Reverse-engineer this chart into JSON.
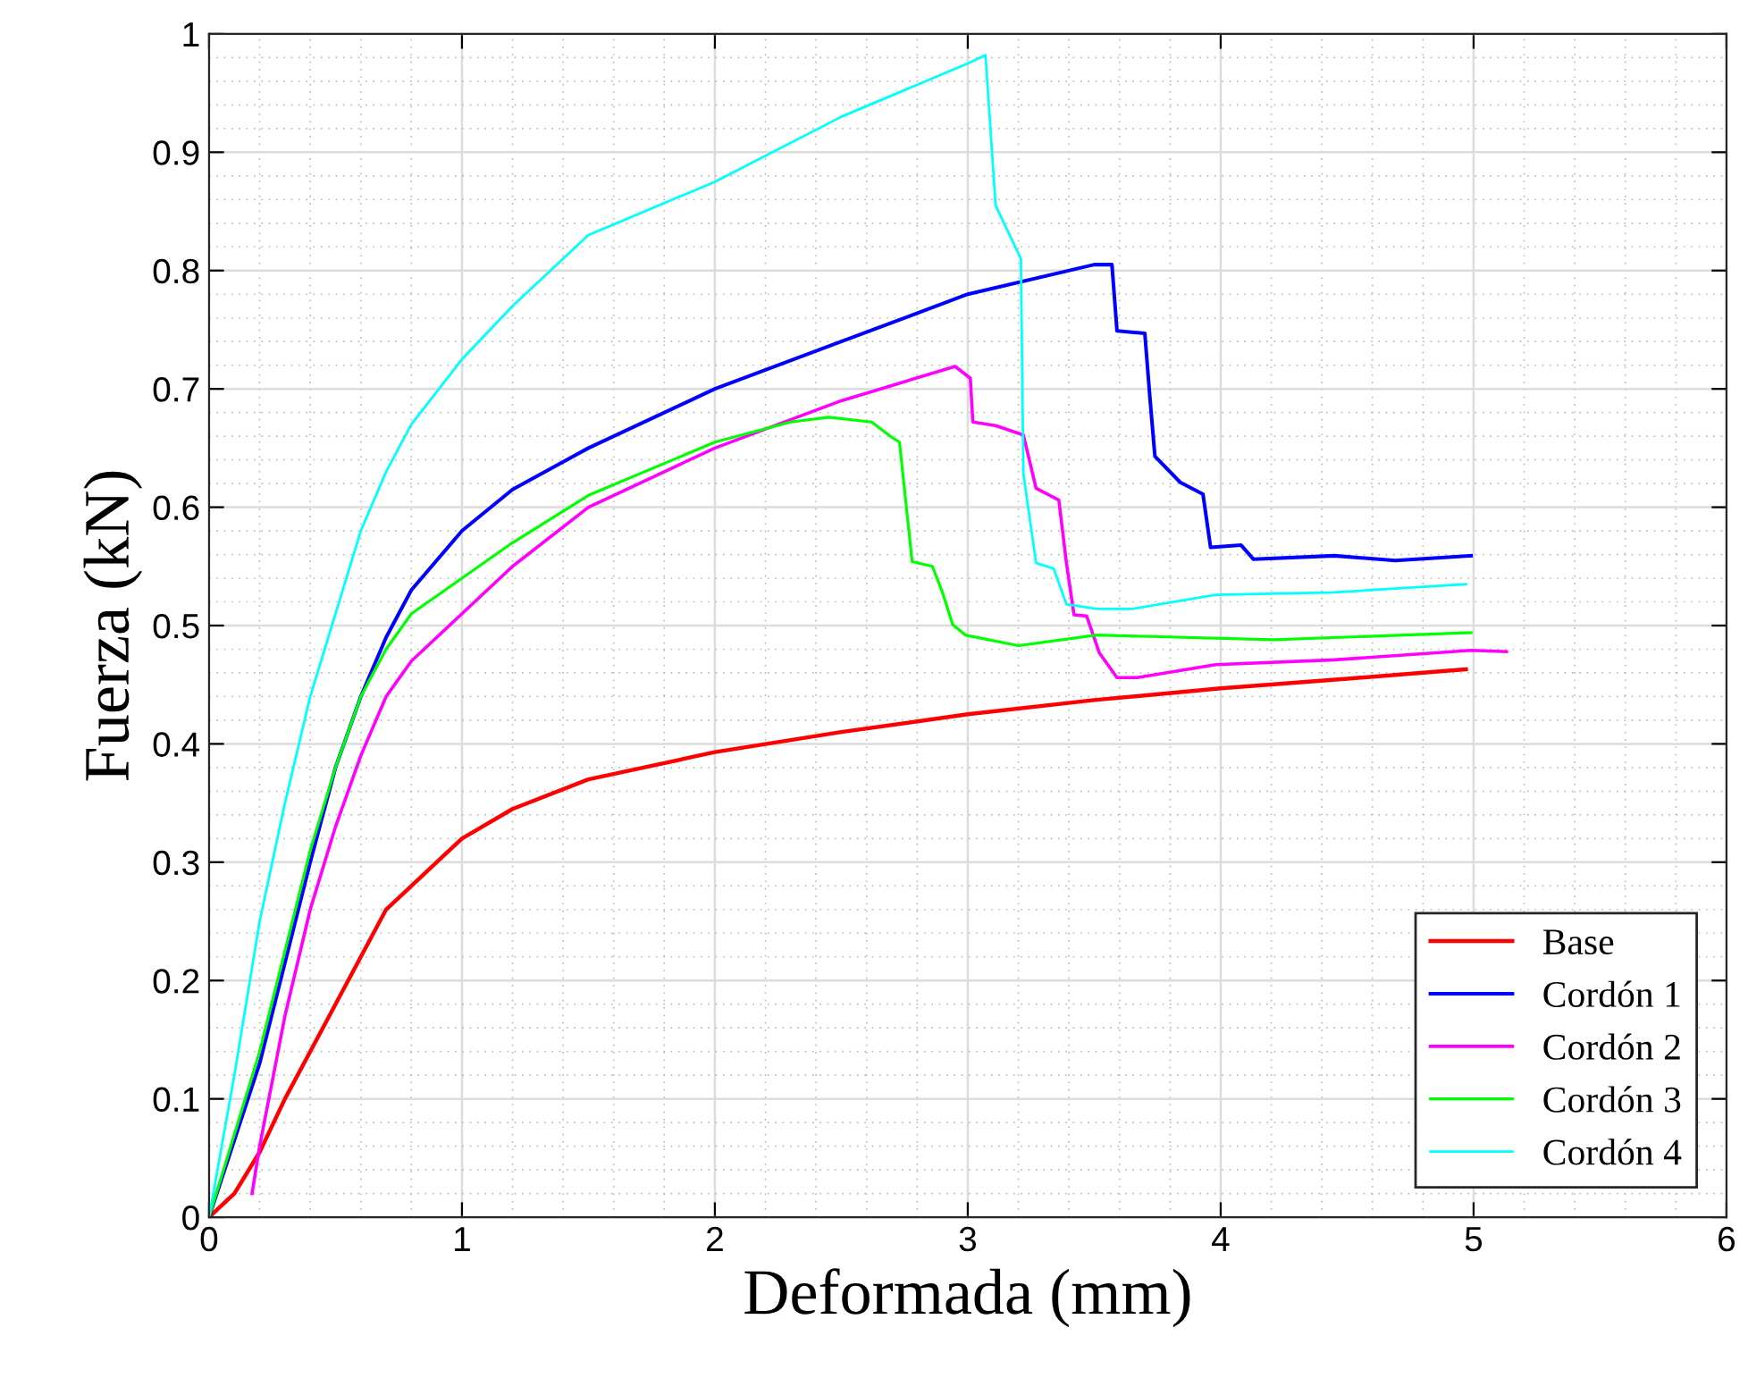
{
  "chart_data": {
    "type": "line",
    "xlabel": "Deformada (mm)",
    "ylabel": "Fuerza (kN)",
    "xlim": [
      0,
      6
    ],
    "ylim": [
      0,
      1
    ],
    "xticks": [
      0,
      1,
      2,
      3,
      4,
      5,
      6
    ],
    "yticks": [
      0,
      0.1,
      0.2,
      0.3,
      0.4,
      0.5,
      0.6,
      0.7,
      0.8,
      0.9,
      1
    ],
    "grid": true,
    "legend": "bottom right",
    "line_style": "solid",
    "marker": "none",
    "series": [
      {
        "name": "Base",
        "color": "#ff0000",
        "x": [
          0,
          0.1,
          0.2,
          0.3,
          0.4,
          0.5,
          0.6,
          0.7,
          0.8,
          1.0,
          1.2,
          1.5,
          2.0,
          2.5,
          3.0,
          3.5,
          4.0,
          4.5,
          4.97
        ],
        "values": [
          0,
          0.02,
          0.055,
          0.1,
          0.14,
          0.18,
          0.22,
          0.26,
          0.28,
          0.32,
          0.345,
          0.37,
          0.393,
          0.41,
          0.425,
          0.437,
          0.447,
          0.455,
          0.463
        ]
      },
      {
        "name": "Cordón 1",
        "color": "#0000ff",
        "x": [
          0,
          0.2,
          0.4,
          0.5,
          0.6,
          0.7,
          0.8,
          1.0,
          1.2,
          1.5,
          2.0,
          2.5,
          3.0,
          3.5,
          3.57,
          3.59,
          3.7,
          3.72,
          3.74,
          3.84,
          3.93,
          3.96,
          4.08,
          4.13,
          4.45,
          4.69,
          4.99
        ],
        "values": [
          0,
          0.13,
          0.3,
          0.38,
          0.44,
          0.49,
          0.53,
          0.58,
          0.615,
          0.65,
          0.7,
          0.74,
          0.78,
          0.805,
          0.805,
          0.749,
          0.747,
          0.693,
          0.643,
          0.621,
          0.611,
          0.566,
          0.568,
          0.556,
          0.559,
          0.555,
          0.559
        ]
      },
      {
        "name": "Cordón 2",
        "color": "#ff00ff",
        "x": [
          0.17,
          0.2,
          0.3,
          0.4,
          0.5,
          0.6,
          0.7,
          0.8,
          1.0,
          1.2,
          1.5,
          2.0,
          2.5,
          2.95,
          3.01,
          3.02,
          3.11,
          3.22,
          3.27,
          3.36,
          3.39,
          3.42,
          3.47,
          3.52,
          3.59,
          3.67,
          3.98,
          4.45,
          4.99,
          5.13
        ],
        "values": [
          0.02,
          0.06,
          0.17,
          0.26,
          0.33,
          0.39,
          0.44,
          0.47,
          0.51,
          0.55,
          0.6,
          0.65,
          0.69,
          0.719,
          0.709,
          0.672,
          0.669,
          0.661,
          0.616,
          0.606,
          0.553,
          0.509,
          0.508,
          0.477,
          0.456,
          0.456,
          0.467,
          0.471,
          0.479,
          0.478
        ]
      },
      {
        "name": "Cordón 3",
        "color": "#00ff00",
        "x": [
          0,
          0.2,
          0.4,
          0.5,
          0.6,
          0.7,
          0.8,
          1.0,
          1.2,
          1.5,
          2.0,
          2.3,
          2.45,
          2.62,
          2.7,
          2.73,
          2.78,
          2.86,
          2.9,
          2.94,
          2.99,
          3.2,
          3.51,
          4.21,
          4.99
        ],
        "values": [
          0,
          0.14,
          0.31,
          0.38,
          0.44,
          0.48,
          0.51,
          0.54,
          0.57,
          0.61,
          0.655,
          0.672,
          0.676,
          0.672,
          0.659,
          0.655,
          0.554,
          0.55,
          0.528,
          0.501,
          0.492,
          0.483,
          0.492,
          0.488,
          0.494
        ]
      },
      {
        "name": "Cordón 4",
        "color": "#00ffff",
        "x": [
          0,
          0.1,
          0.2,
          0.3,
          0.4,
          0.5,
          0.6,
          0.7,
          0.8,
          1.0,
          1.2,
          1.5,
          2.0,
          2.5,
          3.0,
          3.07,
          3.11,
          3.21,
          3.22,
          3.27,
          3.34,
          3.39,
          3.51,
          3.65,
          3.98,
          4.45,
          4.97
        ],
        "values": [
          0,
          0.12,
          0.25,
          0.35,
          0.44,
          0.51,
          0.58,
          0.63,
          0.67,
          0.725,
          0.77,
          0.83,
          0.875,
          0.93,
          0.975,
          0.982,
          0.855,
          0.81,
          0.628,
          0.553,
          0.548,
          0.518,
          0.514,
          0.514,
          0.526,
          0.528,
          0.535
        ]
      }
    ]
  }
}
